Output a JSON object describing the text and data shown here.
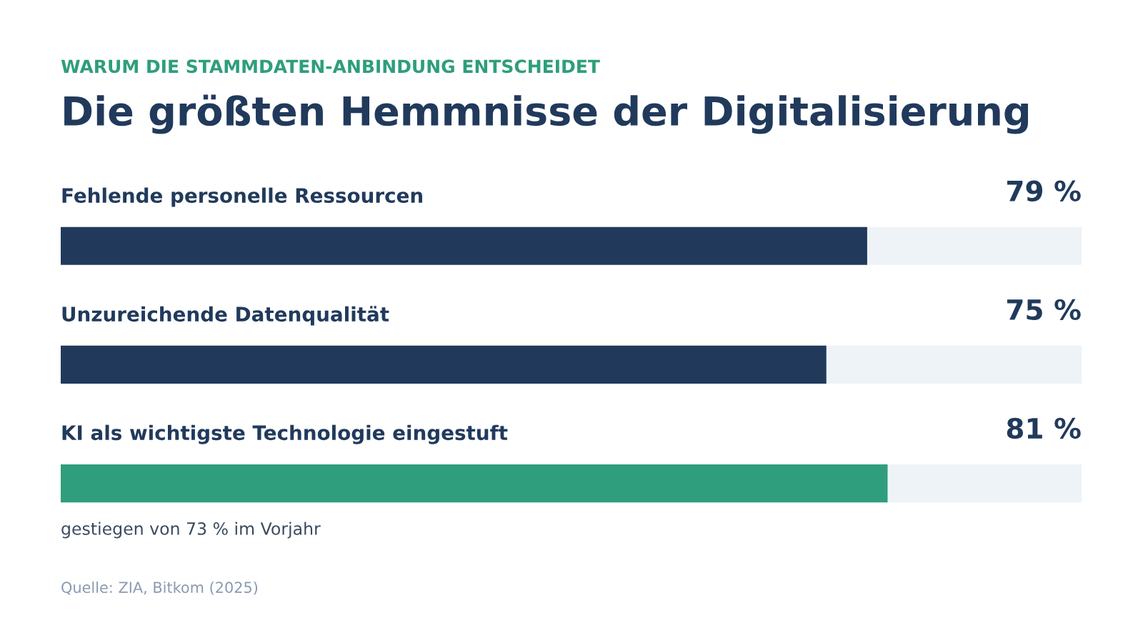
{
  "chart_data": {
    "type": "bar",
    "orientation": "horizontal",
    "subtitle": "WARUM DIE STAMMDATEN-ANBINDUNG ENTSCHEIDET",
    "title": "Die größten Hemmnisse der Digitalisierung",
    "categories": [
      "Fehlende personelle Ressourcen",
      "Unzureichende Datenqualität",
      "KI als wichtigste Technologie eingestuft"
    ],
    "values": [
      79,
      75,
      81
    ],
    "colors": [
      "#213a5c",
      "#213a5c",
      "#2e9e7c"
    ],
    "value_labels": [
      "79 %",
      "75 %",
      "81 %"
    ],
    "xlim": [
      0,
      100
    ],
    "annotations": [
      "gestiegen von 73 % im Vorjahr",
      "Quelle: ZIA, Bitkom (2025)"
    ]
  }
}
